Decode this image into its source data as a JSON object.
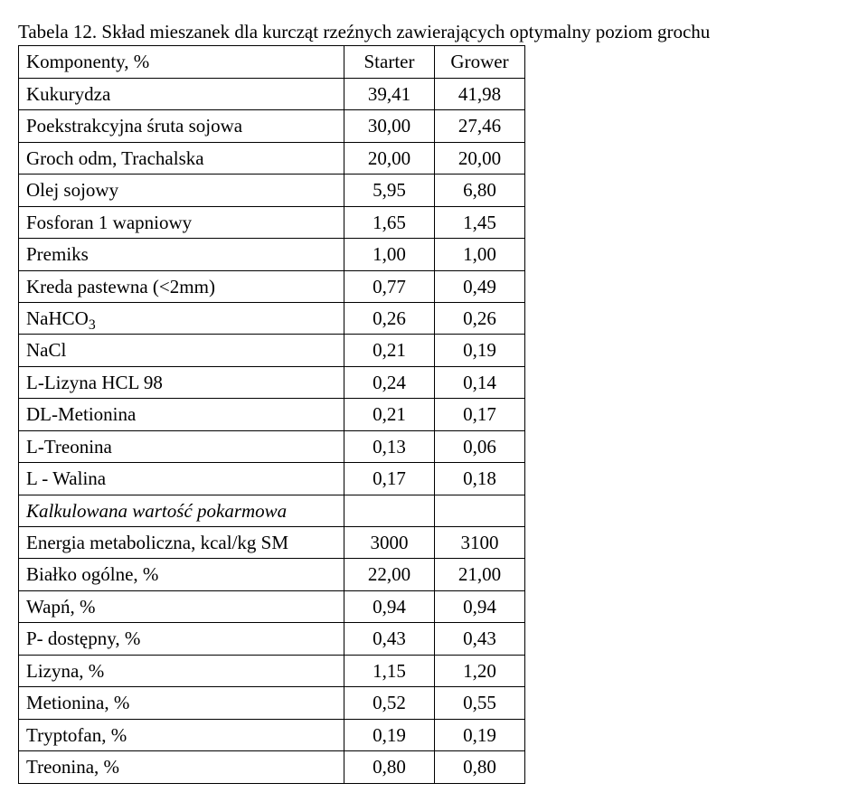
{
  "title_prefix": "Tabela 12.",
  "title_rest": " Skład mieszanek dla kurcząt rzeźnych zawierających optymalny poziom grochu",
  "header": {
    "col0": "Komponenty, %",
    "col1": "Starter",
    "col2": "Grower"
  },
  "rows": [
    {
      "label": "Kukurydza",
      "v1": "39,41",
      "v2": "41,98"
    },
    {
      "label": "Poekstrakcyjna śruta sojowa",
      "v1": "30,00",
      "v2": "27,46"
    },
    {
      "label": "Groch odm, Trachalska",
      "v1": "20,00",
      "v2": "20,00"
    },
    {
      "label": "Olej sojowy",
      "v1": "5,95",
      "v2": "6,80"
    },
    {
      "label": "Fosforan 1 wapniowy",
      "v1": "1,65",
      "v2": "1,45"
    },
    {
      "label": "Premiks",
      "v1": "1,00",
      "v2": "1,00"
    },
    {
      "label": "Kreda pastewna (<2mm)",
      "v1": "0,77",
      "v2": "0,49"
    },
    {
      "label_pre": "NaHCO",
      "label_sub": "3",
      "v1": "0,26",
      "v2": "0,26"
    },
    {
      "label": "NaCl",
      "v1": "0,21",
      "v2": "0,19"
    },
    {
      "label": "L-Lizyna HCL 98",
      "v1": "0,24",
      "v2": "0,14"
    },
    {
      "label": "DL-Metionina",
      "v1": "0,21",
      "v2": "0,17"
    },
    {
      "label": "L-Treonina",
      "v1": "0,13",
      "v2": "0,06"
    },
    {
      "label": "L - Walina",
      "v1": "0,17",
      "v2": "0,18"
    }
  ],
  "section_italic": "Kalkulowana wartość pokarmowa",
  "rows2": [
    {
      "label": "Energia metaboliczna, kcal/kg SM",
      "v1": "3000",
      "v2": "3100"
    },
    {
      "label": "Białko ogólne, %",
      "v1": "22,00",
      "v2": "21,00"
    },
    {
      "label": "Wapń, %",
      "v1": "0,94",
      "v2": "0,94"
    },
    {
      "label": "P- dostępny, %",
      "v1": "0,43",
      "v2": "0,43"
    },
    {
      "label": "Lizyna, %",
      "v1": "1,15",
      "v2": "1,20"
    },
    {
      "label": "Metionina, %",
      "v1": "0,52",
      "v2": "0,55"
    },
    {
      "label": "Tryptofan, %",
      "v1": "0,19",
      "v2": "0,19"
    },
    {
      "label": "Treonina, %",
      "v1": "0,80",
      "v2": "0,80"
    }
  ]
}
